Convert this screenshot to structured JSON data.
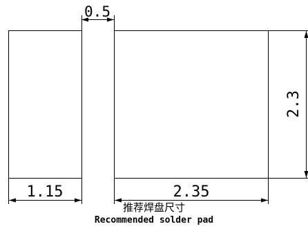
{
  "diagram": {
    "dimensions": {
      "gap": "0.5",
      "left_pad_width": "1.15",
      "right_pad_width": "2.35",
      "pad_height": "2.3"
    },
    "caption_cn": "推荐焊盘尺寸",
    "caption_en": "Recommended solder pad",
    "line_color": "#000000",
    "background": "#ffffff"
  }
}
